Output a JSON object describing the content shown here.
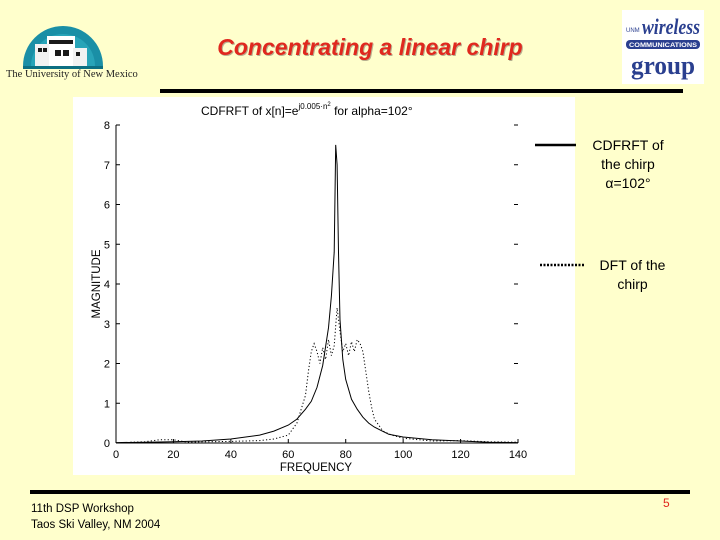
{
  "slide": {
    "title": "Concentrating a linear chirp",
    "footer_line1": "11th DSP Workshop",
    "footer_line2": "Taos Ski Valley, NM 2004",
    "page_number": "5",
    "accent_color": "#e0281e",
    "background_color": "#ffffcc"
  },
  "logos": {
    "unm_text": "The University of New Mexico",
    "wcg_top": "wireless",
    "wcg_mid": "COMMUNICATIONS",
    "wcg_bottom": "group"
  },
  "legend": {
    "entry1_line1": "CDFRFT of",
    "entry1_line2": "the chirp",
    "entry1_line3": "α=102°",
    "entry2_line1": "DFT of the",
    "entry2_line2": "chirp"
  },
  "chart_data": {
    "type": "line",
    "title_prefix": "CDFRFT of x[n]=e",
    "title_exponent": "j0.005·n",
    "title_exponent_power": "2",
    "title_suffix": " for alpha=102°",
    "xlabel": "FREQUENCY",
    "ylabel": "MAGNITUDE",
    "xlim": [
      0,
      140
    ],
    "ylim": [
      0,
      8
    ],
    "xticks": [
      0,
      20,
      40,
      60,
      80,
      100,
      120,
      140
    ],
    "yticks": [
      0,
      1,
      2,
      3,
      4,
      5,
      6,
      7,
      8
    ],
    "grid": false,
    "legend_position": "right, outside plot",
    "series": [
      {
        "name": "CDFRFT of the chirp α=102°",
        "style": "solid",
        "x": [
          0,
          10,
          20,
          30,
          40,
          50,
          55,
          60,
          63,
          66,
          68,
          70,
          72,
          74,
          75,
          76,
          76.5,
          77,
          77.5,
          78,
          79,
          80,
          82,
          84,
          86,
          88,
          90,
          95,
          100,
          110,
          120,
          130,
          140
        ],
        "y": [
          0.01,
          0.02,
          0.03,
          0.05,
          0.1,
          0.2,
          0.3,
          0.45,
          0.6,
          0.85,
          1.05,
          1.4,
          1.95,
          2.9,
          3.7,
          4.8,
          7.5,
          7.0,
          4.8,
          3.1,
          2.1,
          1.6,
          1.1,
          0.85,
          0.65,
          0.5,
          0.4,
          0.22,
          0.15,
          0.08,
          0.05,
          0.02,
          0.01
        ]
      },
      {
        "name": "DFT of the chirp",
        "style": "dotted",
        "x": [
          5,
          10,
          15,
          20,
          25,
          30,
          40,
          50,
          55,
          60,
          63,
          66,
          67,
          68,
          69,
          70,
          71,
          72,
          73,
          74,
          75,
          76,
          77,
          78,
          79,
          80,
          81,
          82,
          83,
          84,
          85,
          86,
          87,
          88,
          89,
          90,
          93,
          96,
          100,
          110,
          120,
          130,
          140
        ],
        "y": [
          0.02,
          0.03,
          0.08,
          0.08,
          0.02,
          0.03,
          0.04,
          0.06,
          0.1,
          0.2,
          0.5,
          1.2,
          1.8,
          2.3,
          2.5,
          2.3,
          2.0,
          2.4,
          2.1,
          2.6,
          2.2,
          2.45,
          3.4,
          2.8,
          2.3,
          2.5,
          2.2,
          2.55,
          2.3,
          2.6,
          2.5,
          2.3,
          1.8,
          1.3,
          0.9,
          0.6,
          0.3,
          0.2,
          0.12,
          0.05,
          0.06,
          0.03,
          0.02
        ]
      }
    ]
  }
}
